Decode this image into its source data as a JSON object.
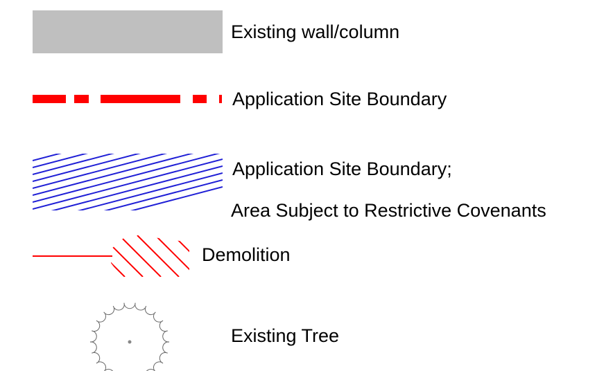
{
  "legend": {
    "items": [
      {
        "label": "Existing wall/column"
      },
      {
        "label": "Application Site Boundary"
      },
      {
        "label": "Application Site Boundary;",
        "label2": "Area Subject to Restrictive Covenants"
      },
      {
        "label": "Demolition"
      },
      {
        "label": "Existing Tree"
      }
    ]
  }
}
